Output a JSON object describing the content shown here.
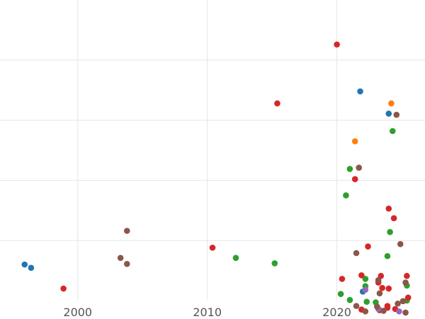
{
  "chart_data": {
    "type": "scatter",
    "title": "",
    "xlabel": "",
    "ylabel": "",
    "xlim": [
      1994,
      2026.8
    ],
    "ylim": [
      0,
      1.0
    ],
    "x_ticks": [
      2000,
      2010,
      2020
    ],
    "x_tick_labels": [
      "2000",
      "2010",
      "2020"
    ],
    "y_gridlines": [
      0.2,
      0.4,
      0.6,
      0.8
    ],
    "grid": true,
    "legend": "none",
    "colors": {
      "blue": "#1f77b4",
      "orange": "#ff7f0e",
      "green": "#2ca02c",
      "red": "#d62728",
      "purple": "#9467bd",
      "brown": "#8c564b",
      "grid": "#e6e6e6",
      "tick_text": "#555555"
    },
    "series": [
      {
        "color": "#1f77b4",
        "points": [
          [
            1995.9,
            0.12
          ],
          [
            1996.4,
            0.109
          ],
          [
            2021.8,
            0.696
          ],
          [
            2024.0,
            0.622
          ],
          [
            2022.0,
            0.03
          ]
        ]
      },
      {
        "color": "#ff7f0e",
        "points": [
          [
            2024.2,
            0.656
          ],
          [
            2021.4,
            0.53
          ]
        ]
      },
      {
        "color": "#2ca02c",
        "points": [
          [
            2012.2,
            0.142
          ],
          [
            2015.2,
            0.124
          ],
          [
            2024.3,
            0.564
          ],
          [
            2021.0,
            0.438
          ],
          [
            2020.7,
            0.35
          ],
          [
            2024.1,
            0.228
          ],
          [
            2023.9,
            0.148
          ],
          [
            2022.2,
            0.072
          ],
          [
            2022.2,
            0.048
          ],
          [
            2020.3,
            0.022
          ],
          [
            2021.0,
            0.002
          ],
          [
            2025.4,
            0.05
          ],
          [
            2025.4,
            0.0
          ],
          [
            2022.3,
            -0.004
          ],
          [
            2023.0,
            -0.006
          ]
        ]
      },
      {
        "color": "#d62728",
        "points": [
          [
            1998.9,
            0.04
          ],
          [
            2010.4,
            0.176
          ],
          [
            2015.4,
            0.656
          ],
          [
            2020.0,
            0.852
          ],
          [
            2021.4,
            0.404
          ],
          [
            2024.0,
            0.306
          ],
          [
            2024.4,
            0.274
          ],
          [
            2022.4,
            0.18
          ],
          [
            2021.9,
            0.084
          ],
          [
            2020.4,
            0.072
          ],
          [
            2023.4,
            0.082
          ],
          [
            2023.2,
            0.06
          ],
          [
            2023.5,
            0.042
          ],
          [
            2024.0,
            0.04
          ],
          [
            2025.4,
            0.082
          ],
          [
            2025.5,
            0.01
          ],
          [
            2021.9,
            -0.03
          ],
          [
            2023.9,
            -0.024
          ],
          [
            2024.5,
            -0.028
          ],
          [
            2023.3,
            -0.032
          ],
          [
            2023.9,
            -0.018
          ]
        ]
      },
      {
        "color": "#9467bd",
        "points": [
          [
            2022.2,
            0.036
          ],
          [
            2024.8,
            -0.036
          ],
          [
            2023.2,
            -0.028
          ]
        ]
      },
      {
        "color": "#8c564b",
        "points": [
          [
            2003.3,
            0.142
          ],
          [
            2003.8,
            0.122
          ],
          [
            2003.8,
            0.232
          ],
          [
            2024.6,
            0.618
          ],
          [
            2021.7,
            0.442
          ],
          [
            2021.5,
            0.158
          ],
          [
            2024.9,
            0.188
          ],
          [
            2023.2,
            0.068
          ],
          [
            2023.3,
            0.024
          ],
          [
            2021.5,
            -0.018
          ],
          [
            2022.2,
            -0.036
          ],
          [
            2025.3,
            0.06
          ],
          [
            2025.1,
            -0.002
          ],
          [
            2024.7,
            -0.01
          ],
          [
            2025.3,
            -0.04
          ],
          [
            2023.1,
            -0.02
          ],
          [
            2023.6,
            -0.034
          ]
        ]
      }
    ]
  }
}
